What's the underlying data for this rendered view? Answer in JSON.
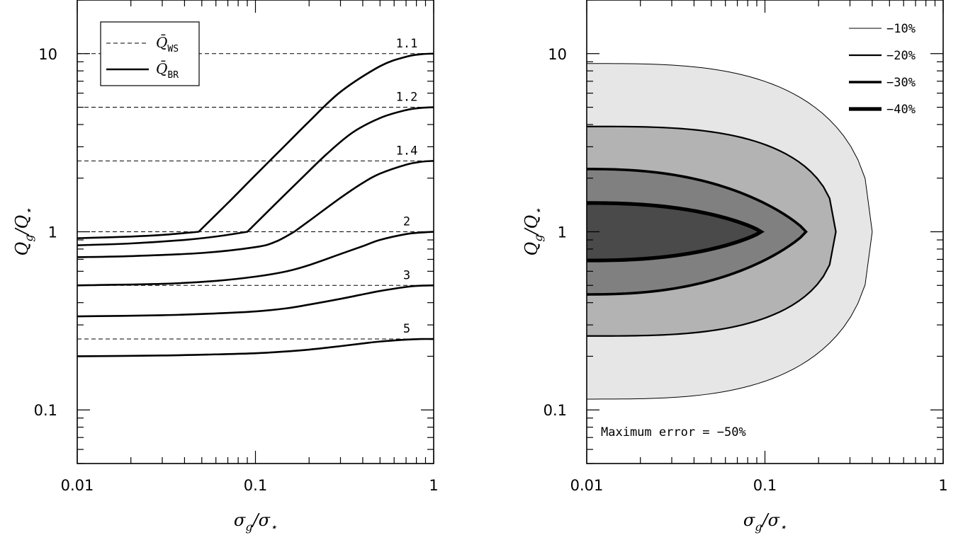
{
  "chart_data": [
    {
      "type": "line",
      "panel": "left",
      "x_scale": "log",
      "y_scale": "log",
      "xlim": [
        0.01,
        1
      ],
      "ylim": [
        0.05,
        20
      ],
      "x_ticks": [
        0.01,
        0.1,
        1
      ],
      "x_tick_labels": [
        "0.01",
        "0.1",
        "1"
      ],
      "y_ticks": [
        0.1,
        1,
        10
      ],
      "y_tick_labels": [
        "0.1",
        "1",
        "10"
      ],
      "xlabel": {
        "base": "σ",
        "sub": "g",
        "base2": "σ",
        "sub2": "⋆"
      },
      "ylabel": {
        "base": "Q",
        "sub": "g",
        "base2": "Q",
        "sub2": "⋆"
      },
      "legend": {
        "position": "top-left",
        "entries": [
          {
            "symbol": "Q̄",
            "sub": "WS",
            "style": "dashed"
          },
          {
            "symbol": "Q̄",
            "sub": "BR",
            "style": "solid"
          }
        ]
      },
      "dashed_levels": [
        {
          "label": "1.1",
          "y": 10
        },
        {
          "label": "1.2",
          "y": 5
        },
        {
          "label": "1.4",
          "y": 2.5
        },
        {
          "label": "2",
          "y": 1
        },
        {
          "label": "3",
          "y": 0.5
        },
        {
          "label": "5",
          "y": 0.25
        }
      ],
      "series": [
        {
          "x": [
            0.01,
            0.02,
            0.03,
            0.048,
            0.07,
            0.1,
            0.15,
            0.2,
            0.3,
            0.5,
            0.7,
            0.85,
            1.0
          ],
          "y": [
            0.92,
            0.94,
            0.96,
            1.0,
            1.45,
            2.08,
            3.12,
            4.16,
            6.1,
            8.5,
            9.6,
            9.92,
            10.0
          ]
        },
        {
          "x": [
            0.01,
            0.02,
            0.04,
            0.06,
            0.09,
            0.12,
            0.18,
            0.25,
            0.35,
            0.5,
            0.7,
            0.85,
            1.0
          ],
          "y": [
            0.84,
            0.86,
            0.9,
            0.94,
            1.0,
            1.33,
            1.98,
            2.72,
            3.6,
            4.35,
            4.82,
            4.96,
            5.0
          ]
        },
        {
          "x": [
            0.01,
            0.02,
            0.05,
            0.1,
            0.13,
            0.165,
            0.2,
            0.3,
            0.4,
            0.5,
            0.7,
            0.85,
            1.0
          ],
          "y": [
            0.72,
            0.73,
            0.76,
            0.82,
            0.88,
            1.0,
            1.15,
            1.55,
            1.88,
            2.12,
            2.38,
            2.47,
            2.5
          ]
        },
        {
          "x": [
            0.01,
            0.03,
            0.06,
            0.1,
            0.15,
            0.2,
            0.3,
            0.4,
            0.5,
            0.7,
            0.85,
            1.0
          ],
          "y": [
            0.5,
            0.51,
            0.53,
            0.56,
            0.6,
            0.65,
            0.75,
            0.83,
            0.9,
            0.97,
            0.99,
            1.0
          ]
        },
        {
          "x": [
            0.01,
            0.03,
            0.06,
            0.1,
            0.15,
            0.2,
            0.3,
            0.4,
            0.5,
            0.7,
            0.85,
            1.0
          ],
          "y": [
            0.335,
            0.34,
            0.348,
            0.357,
            0.372,
            0.39,
            0.42,
            0.445,
            0.465,
            0.49,
            0.498,
            0.5
          ]
        },
        {
          "x": [
            0.01,
            0.03,
            0.06,
            0.1,
            0.15,
            0.2,
            0.3,
            0.4,
            0.5,
            0.7,
            0.85,
            1.0
          ],
          "y": [
            0.2,
            0.202,
            0.205,
            0.208,
            0.213,
            0.218,
            0.228,
            0.236,
            0.242,
            0.248,
            0.25,
            0.25
          ]
        }
      ]
    },
    {
      "type": "contour",
      "panel": "right",
      "x_scale": "log",
      "y_scale": "log",
      "xlim": [
        0.01,
        1
      ],
      "ylim": [
        0.05,
        20
      ],
      "x_ticks": [
        0.01,
        0.1,
        1
      ],
      "x_tick_labels": [
        "0.01",
        "0.1",
        "1"
      ],
      "y_ticks": [
        0.1,
        1,
        10
      ],
      "y_tick_labels": [
        "0.1",
        "1",
        "10"
      ],
      "xlabel": {
        "base": "σ",
        "sub": "g",
        "base2": "σ",
        "sub2": "⋆"
      },
      "ylabel": {
        "base": "Q",
        "sub": "g",
        "base2": "Q",
        "sub2": "⋆"
      },
      "legend": {
        "position": "top-right",
        "entries": [
          {
            "label": "−10%"
          },
          {
            "label": "−20%"
          },
          {
            "label": "−30%"
          },
          {
            "label": "−40%"
          }
        ]
      },
      "annotation": "Maximum error = −50%",
      "contours": [
        {
          "level": "−10%",
          "fill": "#e6e6e6",
          "x_tip": 0.4,
          "y_top": 8.8,
          "y_bottom": 0.115
        },
        {
          "level": "−20%",
          "fill": "#b3b3b3",
          "x_tip": 0.25,
          "y_top": 3.9,
          "y_bottom": 0.26
        },
        {
          "level": "−30%",
          "fill": "#808080",
          "x_tip": 0.17,
          "y_top": 2.25,
          "y_bottom": 0.445
        },
        {
          "level": "−40%",
          "fill": "#4a4a4a",
          "x_tip": 0.095,
          "y_top": 1.45,
          "y_bottom": 0.69
        }
      ]
    }
  ]
}
